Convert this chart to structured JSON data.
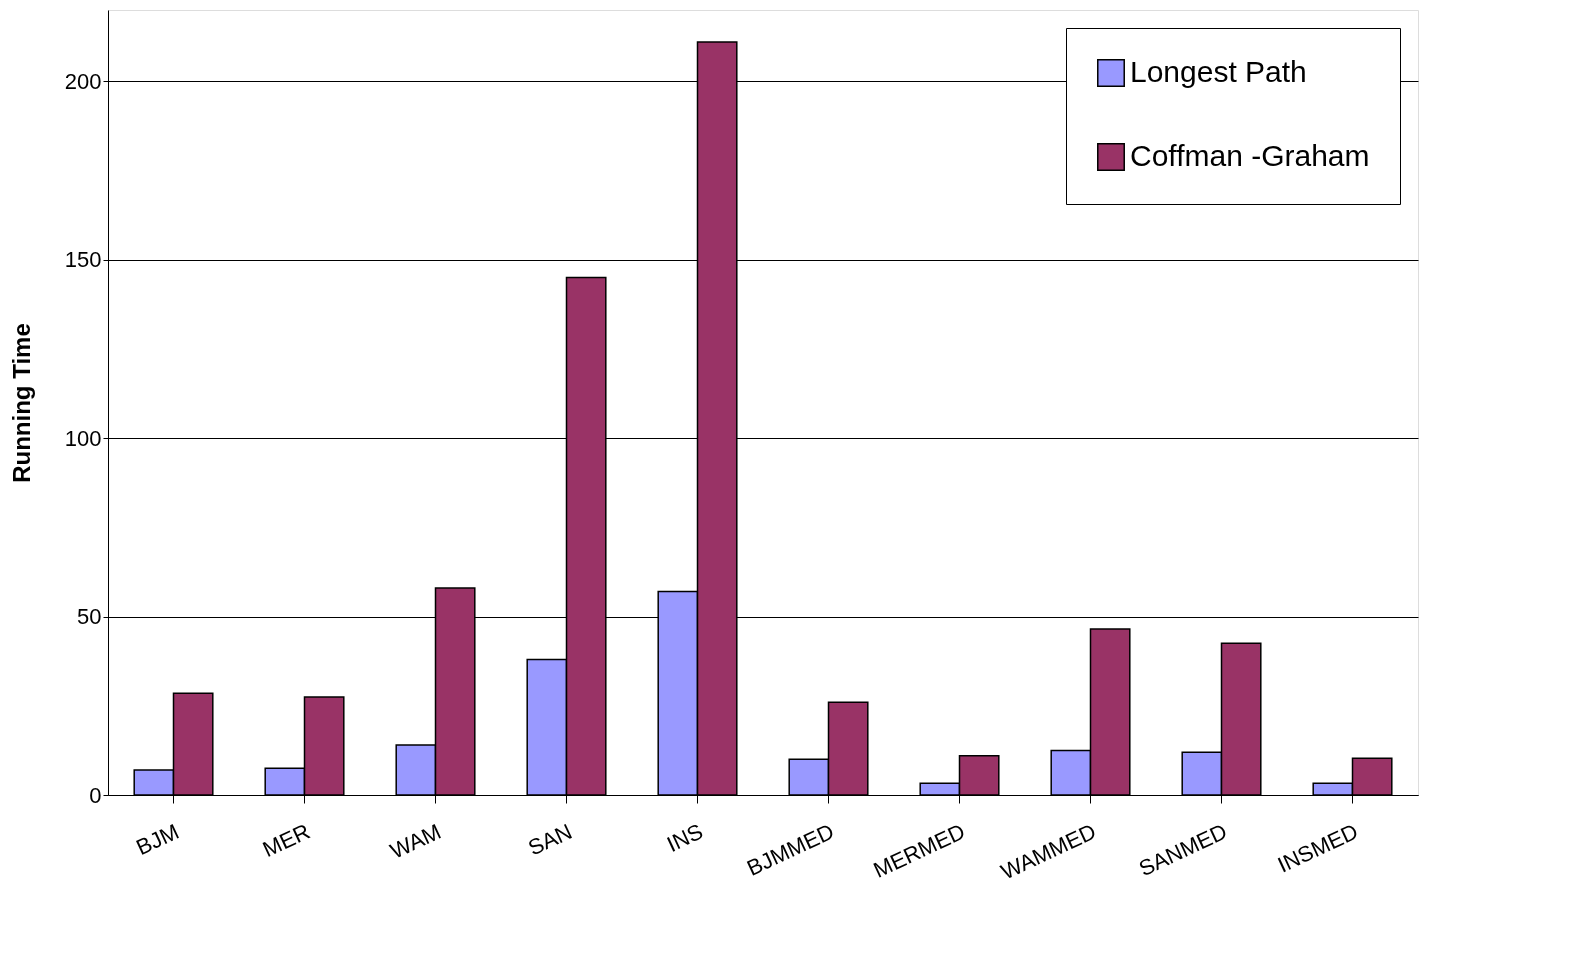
{
  "chart_data": {
    "type": "bar",
    "ylabel": "Running Time",
    "categories": [
      "BJM",
      "MER",
      "WAM",
      "SAN",
      "INS",
      "BJMMED",
      "MERMED",
      "WAMMED",
      "SANMED",
      "INSMED"
    ],
    "series": [
      {
        "name": "Longest Path",
        "color": "#9999ff",
        "values": [
          7,
          7.5,
          14,
          38,
          57,
          10,
          3.3,
          12.5,
          12,
          3.3
        ]
      },
      {
        "name": "Coffman -Graham",
        "color": "#993366",
        "values": [
          28.5,
          27.5,
          58,
          145,
          211,
          26,
          11,
          46.5,
          42.5,
          10.3
        ]
      }
    ],
    "ylim": [
      0,
      220
    ],
    "yticks": [
      0,
      50,
      100,
      150,
      200
    ],
    "grid": "y",
    "legend": "top right"
  }
}
